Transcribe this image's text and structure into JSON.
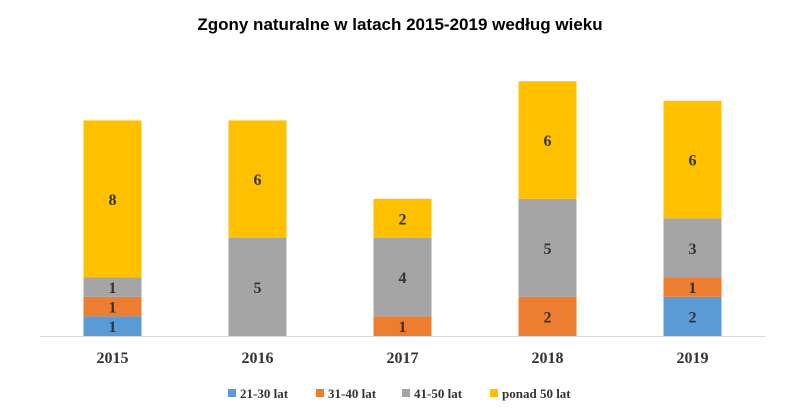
{
  "chart_data": {
    "type": "bar",
    "stacked": true,
    "title": "Zgony naturalne w latach 2015-2019 według wieku",
    "categories": [
      "2015",
      "2016",
      "2017",
      "2018",
      "2019"
    ],
    "series": [
      {
        "name": "21-30 lat",
        "color": "#5b9bd5",
        "values": [
          1,
          0,
          0,
          0,
          2
        ]
      },
      {
        "name": "31-40 lat",
        "color": "#ed7d31",
        "values": [
          1,
          0,
          1,
          2,
          1
        ]
      },
      {
        "name": "41-50 lat",
        "color": "#a5a5a5",
        "values": [
          1,
          5,
          4,
          5,
          3
        ]
      },
      {
        "name": "ponad  50 lat",
        "color": "#ffc000",
        "values": [
          8,
          6,
          2,
          6,
          6
        ]
      }
    ],
    "ylim": [
      0,
      13
    ],
    "grid": false,
    "legend": "bottom",
    "data_labels": true
  }
}
